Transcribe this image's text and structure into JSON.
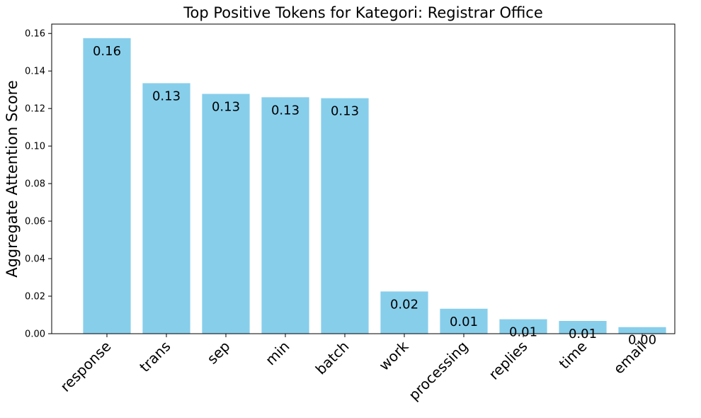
{
  "chart_data": {
    "type": "bar",
    "title": "Top Positive Tokens for Kategori: Registrar Office",
    "xlabel": "",
    "ylabel": "Aggregate Attention Score",
    "categories": [
      "response",
      "trans",
      "sep",
      "min",
      "batch",
      "work",
      "processing",
      "replies",
      "time",
      "email"
    ],
    "values": [
      0.1575,
      0.1335,
      0.1278,
      0.126,
      0.1255,
      0.0225,
      0.0133,
      0.0077,
      0.0068,
      0.0035
    ],
    "value_labels": [
      "0.16",
      "0.13",
      "0.13",
      "0.13",
      "0.13",
      "0.02",
      "0.01",
      "0.01",
      "0.01",
      "0.00"
    ],
    "ylim": [
      0,
      0.165
    ],
    "yticks": [
      0.0,
      0.02,
      0.04,
      0.06,
      0.08,
      0.1,
      0.12,
      0.14,
      0.16
    ],
    "ytick_labels": [
      "0.00",
      "0.02",
      "0.04",
      "0.06",
      "0.08",
      "0.10",
      "0.12",
      "0.14",
      "0.16"
    ],
    "bar_color": "#87CEEB",
    "grid": false,
    "legend": "none"
  }
}
